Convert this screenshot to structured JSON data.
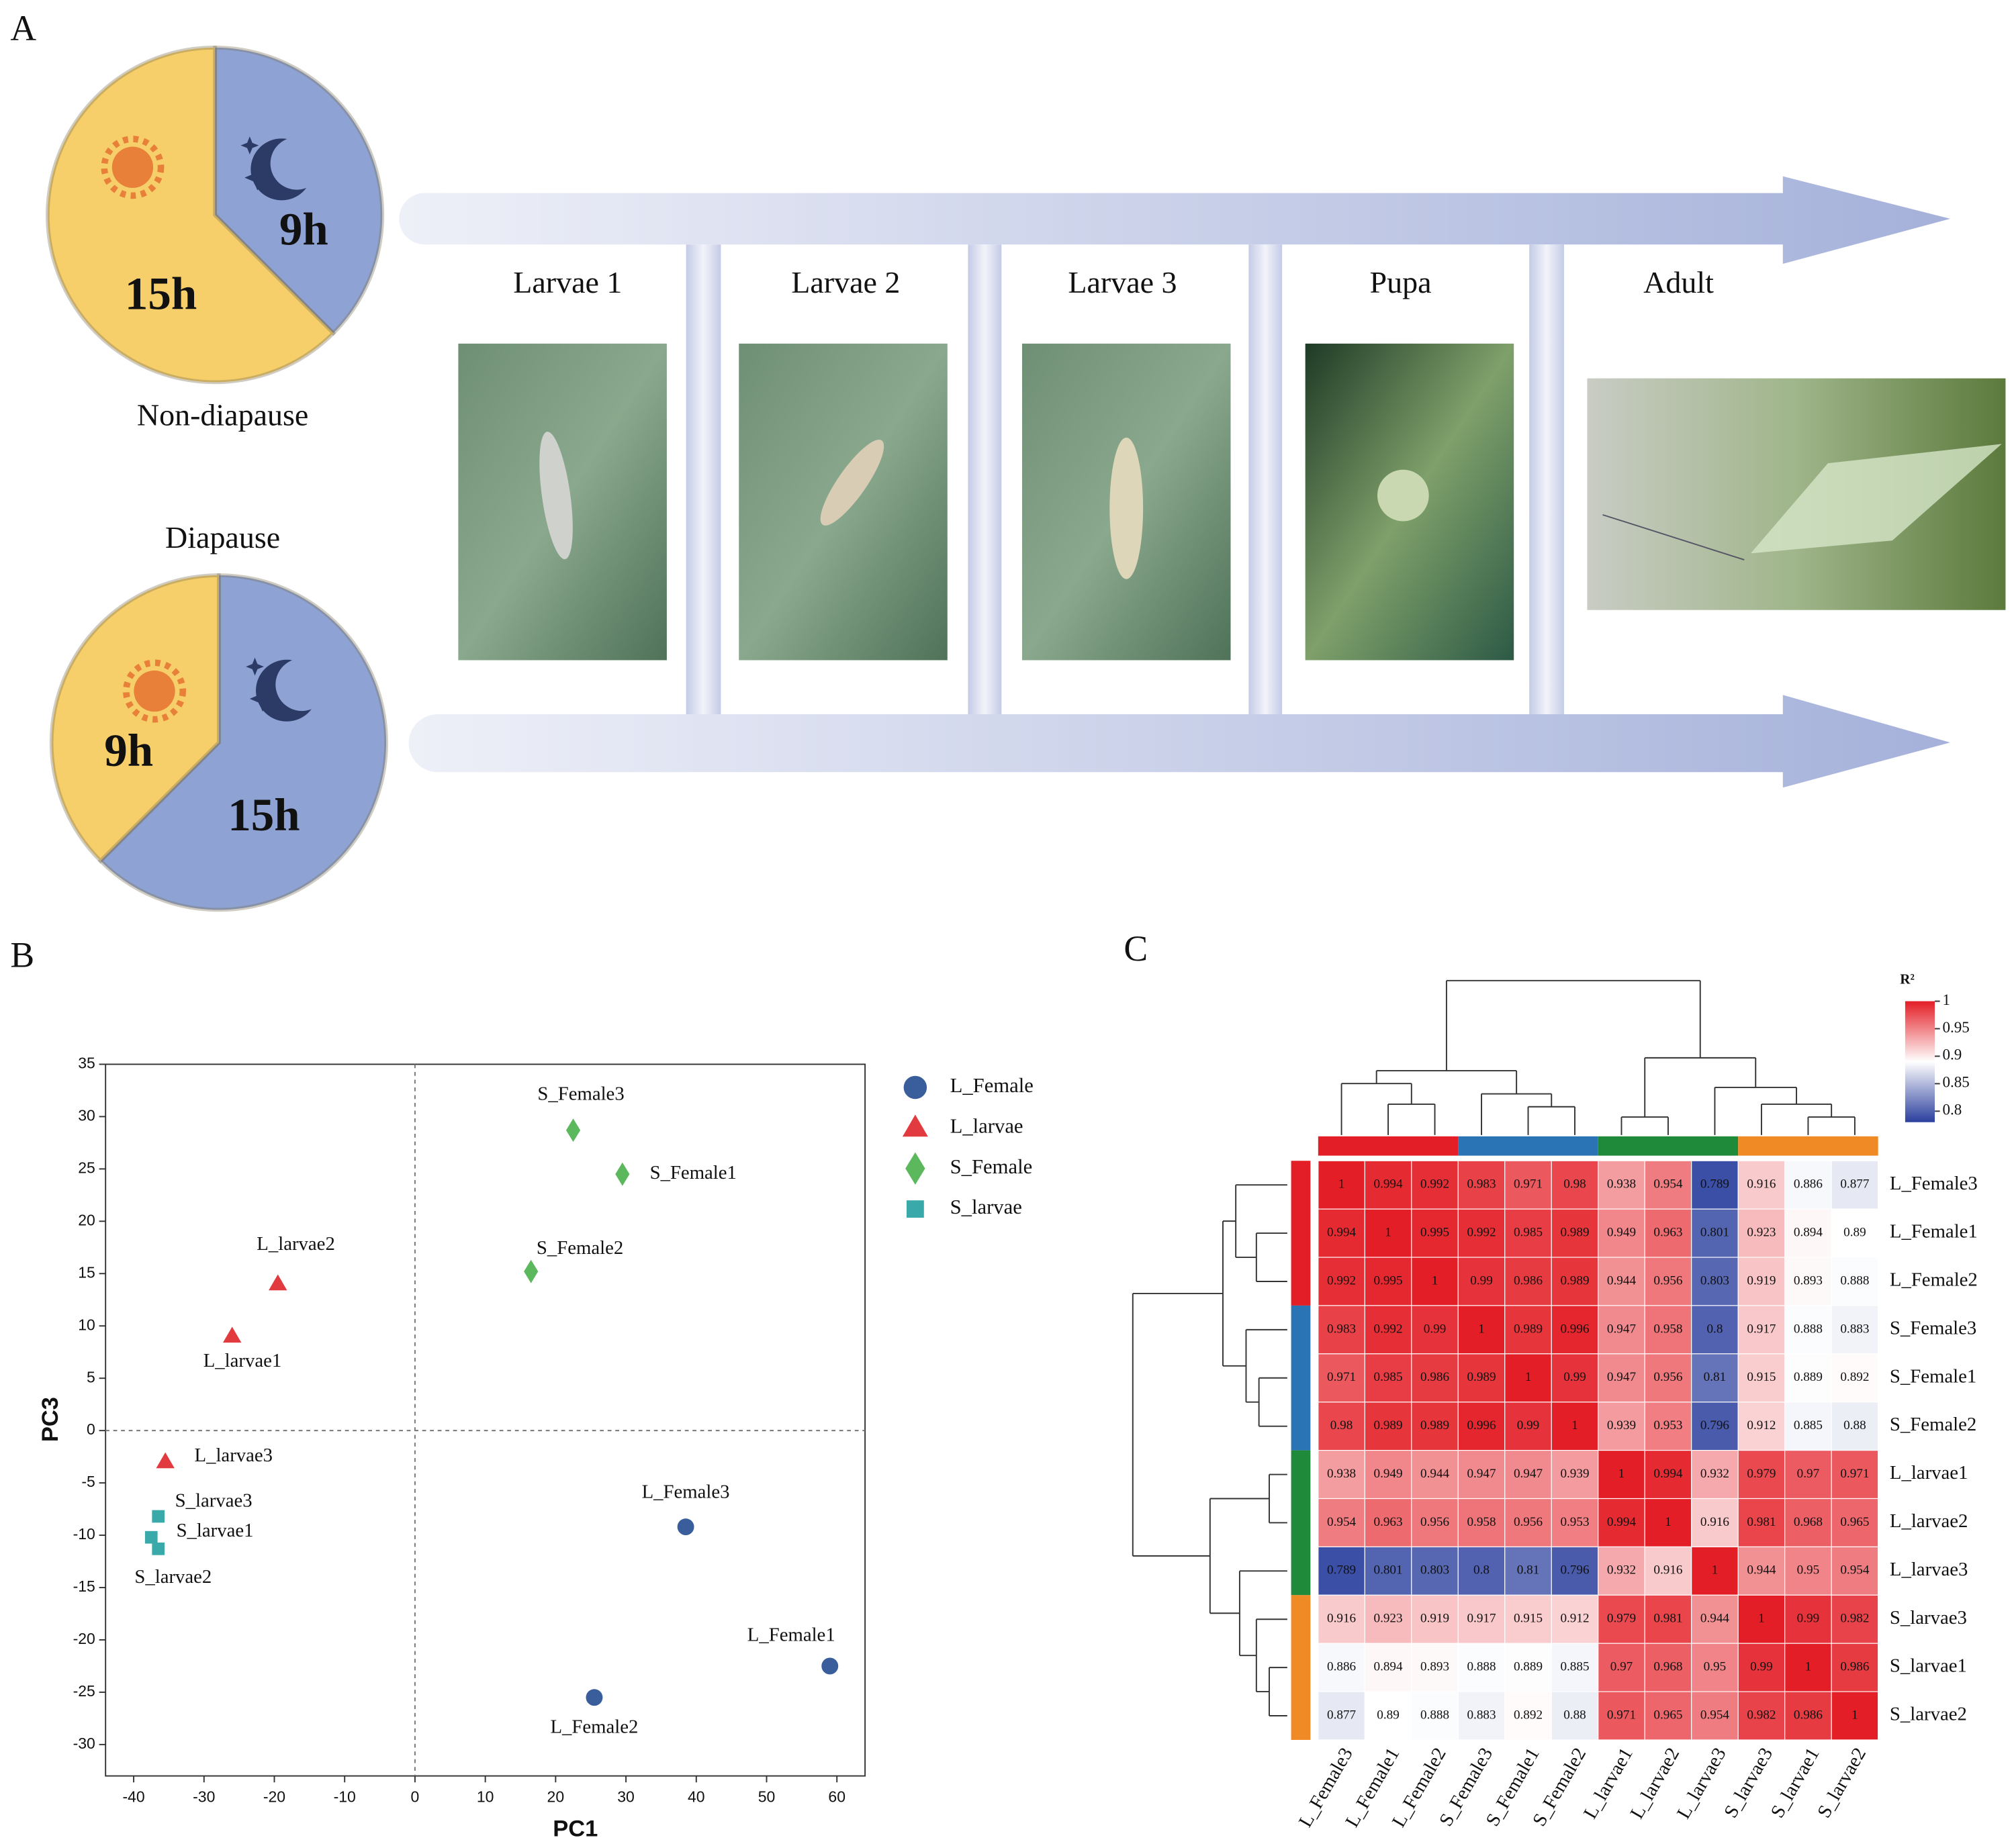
{
  "panels": [
    "A",
    "B",
    "C"
  ],
  "stages": [
    "Larvae 1",
    "Larvae 2",
    "Larvae 3",
    "Pupa",
    "Adult"
  ],
  "chart_data": [
    {
      "type": "pie",
      "title": "Non-diapause",
      "values": [
        9,
        15
      ],
      "value_labels": [
        "9h",
        "15h"
      ],
      "colors": [
        "#8ea3d4",
        "#f6cf6b"
      ]
    },
    {
      "type": "pie",
      "title": "Diapause",
      "values": [
        15,
        9
      ],
      "value_labels": [
        "15h",
        "9h"
      ],
      "colors": [
        "#8ea3d4",
        "#f6cf6b"
      ]
    },
    {
      "type": "scatter",
      "xlabel": "PC1",
      "ylabel": "PC3",
      "xlim": [
        -44,
        64
      ],
      "ylim": [
        -33,
        35
      ],
      "xticks": [
        -40,
        -30,
        -20,
        -10,
        0,
        10,
        20,
        30,
        40,
        50,
        60
      ],
      "yticks": [
        -30,
        -25,
        -20,
        -15,
        -10,
        -5,
        0,
        5,
        10,
        15,
        20,
        25,
        30,
        35
      ],
      "zero_lines": true,
      "series": [
        {
          "name": "L_Female",
          "color": "#3a5d9c",
          "marker": "circle",
          "labels": [
            "L_Female3",
            "L_Female1",
            "L_Female2"
          ],
          "x": [
            38.5,
            59,
            25.5
          ],
          "y": [
            -9.2,
            -22.5,
            -25.5
          ]
        },
        {
          "name": "L_larvae",
          "color": "#e23b3f",
          "marker": "triangle",
          "labels": [
            "L_larvae2",
            "L_larvae1",
            "L_larvae3"
          ],
          "x": [
            -19.5,
            -26,
            -35.5
          ],
          "y": [
            14,
            9,
            -3
          ]
        },
        {
          "name": "S_Female",
          "color": "#5cb85c",
          "marker": "diamond",
          "labels": [
            "S_Female3",
            "S_Female1",
            "S_Female2"
          ],
          "x": [
            22.5,
            29.5,
            16.5
          ],
          "y": [
            28.7,
            24.5,
            15.2
          ]
        },
        {
          "name": "S_larvae",
          "color": "#3aa9a9",
          "marker": "square",
          "labels": [
            "S_larvae3",
            "S_larvae1",
            "S_larvae2"
          ],
          "x": [
            -36.5,
            -36.5,
            -37.5
          ],
          "y": [
            -8.2,
            -11.3,
            -10.2
          ]
        }
      ]
    },
    {
      "type": "heatmap",
      "colorbar_title": "R²",
      "rows": [
        "L_Female3",
        "L_Female1",
        "L_Female2",
        "S_Female3",
        "S_Female1",
        "S_Female2",
        "L_larvae1",
        "L_larvae2",
        "L_larvae3",
        "S_larvae3",
        "S_larvae1",
        "S_larvae2"
      ],
      "columns": [
        "L_Female3",
        "L_Female1",
        "L_Female2",
        "S_Female3",
        "S_Female1",
        "S_Female2",
        "L_larvae1",
        "L_larvae2",
        "L_larvae3",
        "S_larvae3",
        "S_larvae1",
        "S_larvae2"
      ],
      "values": [
        [
          1,
          0.994,
          0.992,
          0.983,
          0.971,
          0.98,
          0.938,
          0.954,
          0.789,
          0.916,
          0.886,
          0.877
        ],
        [
          0.994,
          1,
          0.995,
          0.992,
          0.985,
          0.989,
          0.949,
          0.963,
          0.801,
          0.923,
          0.894,
          0.89
        ],
        [
          0.992,
          0.995,
          1,
          0.99,
          0.986,
          0.989,
          0.944,
          0.956,
          0.803,
          0.919,
          0.893,
          0.888
        ],
        [
          0.983,
          0.992,
          0.99,
          1,
          0.989,
          0.996,
          0.947,
          0.958,
          0.8,
          0.917,
          0.888,
          0.883
        ],
        [
          0.971,
          0.985,
          0.986,
          0.989,
          1,
          0.99,
          0.947,
          0.956,
          0.81,
          0.915,
          0.889,
          0.892
        ],
        [
          0.98,
          0.989,
          0.989,
          0.996,
          0.99,
          1,
          0.939,
          0.953,
          0.796,
          0.912,
          0.885,
          0.88
        ],
        [
          0.938,
          0.949,
          0.944,
          0.947,
          0.947,
          0.939,
          1,
          0.994,
          0.932,
          0.979,
          0.97,
          0.971
        ],
        [
          0.954,
          0.963,
          0.956,
          0.958,
          0.956,
          0.953,
          0.994,
          1,
          0.916,
          0.981,
          0.968,
          0.965
        ],
        [
          0.789,
          0.801,
          0.803,
          0.8,
          0.81,
          0.796,
          0.932,
          0.916,
          1,
          0.944,
          0.95,
          0.954
        ],
        [
          0.916,
          0.923,
          0.919,
          0.917,
          0.915,
          0.912,
          0.979,
          0.981,
          0.944,
          1,
          0.99,
          0.982
        ],
        [
          0.886,
          0.894,
          0.893,
          0.888,
          0.889,
          0.885,
          0.97,
          0.968,
          0.95,
          0.99,
          1,
          0.986
        ],
        [
          0.877,
          0.89,
          0.888,
          0.883,
          0.892,
          0.88,
          0.971,
          0.965,
          0.954,
          0.982,
          0.986,
          1
        ]
      ],
      "zlim": [
        0.78,
        1
      ],
      "colors": [
        "#2b3f9e",
        "#ffffff",
        "#e41e26"
      ],
      "colorbar_ticks": [
        1,
        0.95,
        0.9,
        0.85,
        0.8
      ],
      "group_colors": [
        "#e41e26",
        "#2a74b5",
        "#1e8a3a",
        "#f08a24"
      ]
    }
  ]
}
